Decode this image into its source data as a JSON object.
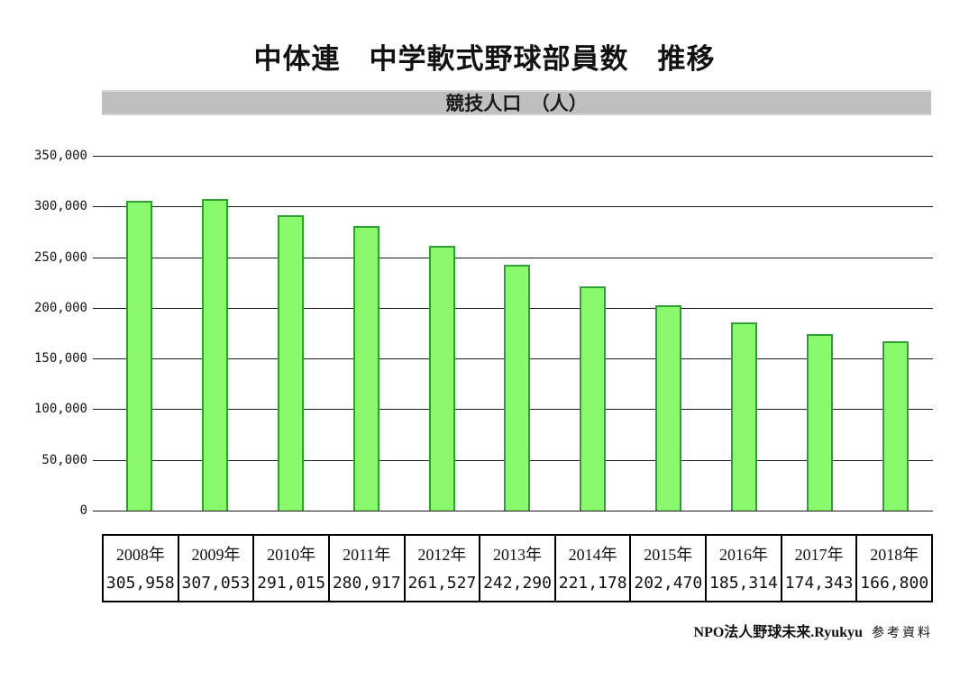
{
  "title": "中体連　中学軟式野球部員数　推移",
  "subtitle": "競技人口　（人）",
  "footer": {
    "source_bold": "NPO法人野球未来.Ryukyu",
    "source_suffix": "参考資料"
  },
  "colors": {
    "bar_fill": "#8bf96d",
    "bar_border": "#2f9e33",
    "band_gray": "#bfbfbf",
    "gridline": "#1a1a1a"
  },
  "chart_data": {
    "type": "bar",
    "title": "中体連　中学軟式野球部員数　推移",
    "subtitle": "競技人口　（人）",
    "xlabel": "",
    "ylabel": "競技人口（人）",
    "categories": [
      "2008年",
      "2009年",
      "2010年",
      "2011年",
      "2012年",
      "2013年",
      "2014年",
      "2015年",
      "2016年",
      "2017年",
      "2018年"
    ],
    "values": [
      305958,
      307053,
      291015,
      280917,
      261527,
      242290,
      221178,
      202470,
      185314,
      174343,
      166800
    ],
    "values_formatted": [
      "305,958",
      "307,053",
      "291,015",
      "280,917",
      "261,527",
      "242,290",
      "221,178",
      "202,470",
      "185,314",
      "174,343",
      "166,800"
    ],
    "ylim": [
      0,
      350000
    ],
    "y_ticks": [
      {
        "value": 0,
        "label": "0"
      },
      {
        "value": 50000,
        "label": "50,000"
      },
      {
        "value": 100000,
        "label": "100,000"
      },
      {
        "value": 150000,
        "label": "150,000"
      },
      {
        "value": 200000,
        "label": "200,000"
      },
      {
        "value": 250000,
        "label": "250,000"
      },
      {
        "value": 300000,
        "label": "300,000"
      },
      {
        "value": 350000,
        "label": "350,000"
      }
    ],
    "grid": true,
    "legend_position": "none"
  }
}
